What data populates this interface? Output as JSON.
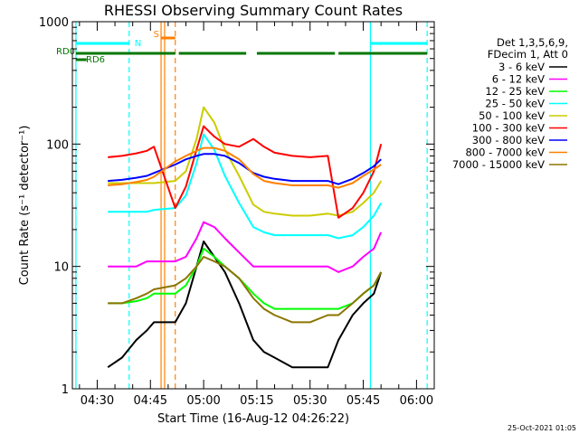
{
  "chart_data": {
    "type": "line",
    "title": "RHESSI Observing Summary Count Rates",
    "xlabel": "Start Time (16-Aug-12 04:26:22)",
    "ylabel": "Count Rate (s⁻¹ detector⁻¹)",
    "xlim": [
      "04:23",
      "06:05"
    ],
    "ylim": [
      1,
      1000
    ],
    "yscale": "log",
    "x_ticks": [
      "04:30",
      "04:45",
      "05:00",
      "05:15",
      "05:30",
      "05:45",
      "06:00"
    ],
    "y_ticks": [
      "1",
      "10",
      "100",
      "1000"
    ],
    "info_lines": [
      "Det 1,3,5,6,9,",
      "FDecim 1, Att 0"
    ],
    "series": [
      {
        "name": "3 - 6 keV",
        "color": "#000000",
        "x": [
          "04:33",
          "04:37",
          "04:41",
          "04:44",
          "04:46",
          "04:52",
          "04:55",
          "04:58",
          "05:00",
          "05:03",
          "05:06",
          "05:10",
          "05:14",
          "05:17",
          "05:20",
          "05:25",
          "05:30",
          "05:35",
          "05:38",
          "05:42",
          "05:45",
          "05:48",
          "05:50"
        ],
        "y": [
          1.5,
          1.8,
          2.5,
          3,
          3.5,
          3.5,
          5,
          10,
          16,
          12,
          9,
          5,
          2.5,
          2,
          1.8,
          1.5,
          1.5,
          1.5,
          2.5,
          4,
          5,
          6,
          9
        ]
      },
      {
        "name": "6 - 12 keV",
        "color": "#ff00ff",
        "x": [
          "04:33",
          "04:37",
          "04:41",
          "04:44",
          "04:46",
          "04:52",
          "04:55",
          "04:58",
          "05:00",
          "05:03",
          "05:06",
          "05:10",
          "05:14",
          "05:17",
          "05:20",
          "05:25",
          "05:30",
          "05:35",
          "05:38",
          "05:42",
          "05:45",
          "05:48",
          "05:50"
        ],
        "y": [
          10,
          10,
          10,
          11,
          11,
          11,
          12,
          17,
          23,
          21,
          17,
          13,
          10,
          10,
          10,
          10,
          10,
          10,
          9,
          10,
          12,
          14,
          19
        ]
      },
      {
        "name": "12 - 25 keV",
        "color": "#00ff00",
        "x": [
          "04:33",
          "04:37",
          "04:41",
          "04:44",
          "04:46",
          "04:52",
          "04:55",
          "04:58",
          "05:00",
          "05:03",
          "05:06",
          "05:10",
          "05:14",
          "05:17",
          "05:20",
          "05:25",
          "05:30",
          "05:35",
          "05:38",
          "05:42",
          "05:45",
          "05:48",
          "05:50"
        ],
        "y": [
          5,
          5,
          5.2,
          5.5,
          6,
          6,
          7,
          10,
          14,
          12,
          10,
          8,
          6,
          5,
          4.5,
          4.5,
          4.5,
          4.5,
          4.5,
          5,
          6,
          7,
          9
        ]
      },
      {
        "name": "25 - 50 keV",
        "color": "#00ffff",
        "x": [
          "04:33",
          "04:37",
          "04:41",
          "04:44",
          "04:46",
          "04:52",
          "04:55",
          "04:58",
          "05:00",
          "05:03",
          "05:06",
          "05:10",
          "05:14",
          "05:17",
          "05:20",
          "05:25",
          "05:30",
          "05:35",
          "05:38",
          "05:42",
          "05:45",
          "05:48",
          "05:50"
        ],
        "y": [
          28,
          28,
          28,
          28,
          29,
          30,
          38,
          70,
          120,
          90,
          55,
          33,
          21,
          19,
          18,
          18,
          18,
          18,
          17,
          18,
          21,
          26,
          33
        ]
      },
      {
        "name": "50 - 100 keV",
        "color": "#cccc00",
        "x": [
          "04:33",
          "04:37",
          "04:41",
          "04:44",
          "04:46",
          "04:52",
          "04:55",
          "04:58",
          "05:00",
          "05:03",
          "05:06",
          "05:10",
          "05:14",
          "05:17",
          "05:20",
          "05:25",
          "05:30",
          "05:35",
          "05:38",
          "05:42",
          "05:45",
          "05:48",
          "05:50"
        ],
        "y": [
          48,
          48,
          48,
          48,
          48,
          50,
          60,
          110,
          200,
          150,
          90,
          55,
          32,
          28,
          27,
          26,
          26,
          27,
          26,
          28,
          33,
          40,
          50
        ]
      },
      {
        "name": "100 - 300 keV",
        "color": "#ff0000",
        "x": [
          "04:33",
          "04:37",
          "04:41",
          "04:44",
          "04:46",
          "04:52",
          "04:55",
          "04:58",
          "05:00",
          "05:03",
          "05:06",
          "05:10",
          "05:14",
          "05:17",
          "05:20",
          "05:25",
          "05:30",
          "05:35",
          "05:38",
          "05:42",
          "05:45",
          "05:48",
          "05:50"
        ],
        "y": [
          78,
          80,
          84,
          88,
          95,
          30,
          45,
          90,
          140,
          115,
          100,
          95,
          110,
          95,
          85,
          80,
          78,
          80,
          25,
          30,
          40,
          60,
          100
        ]
      },
      {
        "name": "300 - 800 keV",
        "color": "#0000ff",
        "x": [
          "04:33",
          "04:37",
          "04:41",
          "04:44",
          "04:46",
          "04:52",
          "04:55",
          "04:58",
          "05:00",
          "05:03",
          "05:06",
          "05:10",
          "05:14",
          "05:17",
          "05:20",
          "05:25",
          "05:30",
          "05:35",
          "05:38",
          "05:42",
          "05:45",
          "05:48",
          "05:50"
        ],
        "y": [
          50,
          51,
          53,
          55,
          58,
          68,
          75,
          80,
          83,
          83,
          80,
          70,
          58,
          54,
          52,
          50,
          50,
          50,
          47,
          52,
          58,
          66,
          75
        ]
      },
      {
        "name": "800 - 7000 keV",
        "color": "#ff8000",
        "x": [
          "04:33",
          "04:37",
          "04:41",
          "04:44",
          "04:46",
          "04:52",
          "04:55",
          "04:58",
          "05:00",
          "05:03",
          "05:06",
          "05:10",
          "05:14",
          "05:17",
          "05:20",
          "05:25",
          "05:30",
          "05:35",
          "05:38",
          "05:42",
          "05:45",
          "05:48",
          "05:50"
        ],
        "y": [
          46,
          47,
          49,
          51,
          54,
          72,
          80,
          88,
          93,
          93,
          88,
          75,
          57,
          50,
          48,
          46,
          46,
          46,
          44,
          48,
          55,
          62,
          68
        ]
      },
      {
        "name": "7000 - 15000 keV",
        "color": "#8b7500",
        "x": [
          "04:33",
          "04:37",
          "04:41",
          "04:44",
          "04:46",
          "04:52",
          "04:55",
          "04:58",
          "05:00",
          "05:03",
          "05:06",
          "05:10",
          "05:14",
          "05:17",
          "05:20",
          "05:25",
          "05:30",
          "05:35",
          "05:38",
          "05:42",
          "05:45",
          "05:48",
          "05:50"
        ],
        "y": [
          5,
          5,
          5.5,
          6,
          6.5,
          7,
          8,
          10,
          12,
          11,
          10,
          8,
          5.5,
          4.5,
          4,
          3.5,
          3.5,
          4,
          4,
          5,
          6,
          7,
          9
        ]
      }
    ],
    "vertical_lines": [
      {
        "x": "04:24",
        "color": "#00ffff",
        "style": "solid"
      },
      {
        "x": "04:39",
        "color": "#00ffff",
        "style": "dashed"
      },
      {
        "x": "04:48",
        "color": "#ff8000",
        "style": "solid"
      },
      {
        "x": "04:49",
        "color": "#ff8000",
        "style": "solid"
      },
      {
        "x": "04:52",
        "color": "#ff8000",
        "style": "dashed"
      },
      {
        "x": "05:47",
        "color": "#00ffff",
        "style": "solid"
      },
      {
        "x": "06:03",
        "color": "#00ffff",
        "style": "dashed"
      }
    ],
    "flags": [
      {
        "label": "N",
        "color": "#00ffff",
        "segments": [
          [
            "04:24",
            "04:39"
          ],
          [
            "05:47",
            "06:03"
          ]
        ]
      },
      {
        "label": "S",
        "color": "#ff8000",
        "segments": [
          [
            "04:48",
            "04:52"
          ]
        ]
      },
      {
        "label": "RD0",
        "color": "#007700",
        "segments": [
          [
            "04:24",
            "04:52"
          ],
          [
            "04:53",
            "05:12"
          ],
          [
            "05:15",
            "05:37"
          ],
          [
            "05:38",
            "06:03"
          ]
        ]
      },
      {
        "label": "RD6",
        "color": "#007700",
        "segments": [
          [
            "04:24",
            "04:27"
          ]
        ]
      }
    ],
    "timestamp": "25-Oct-2021 01:05"
  }
}
